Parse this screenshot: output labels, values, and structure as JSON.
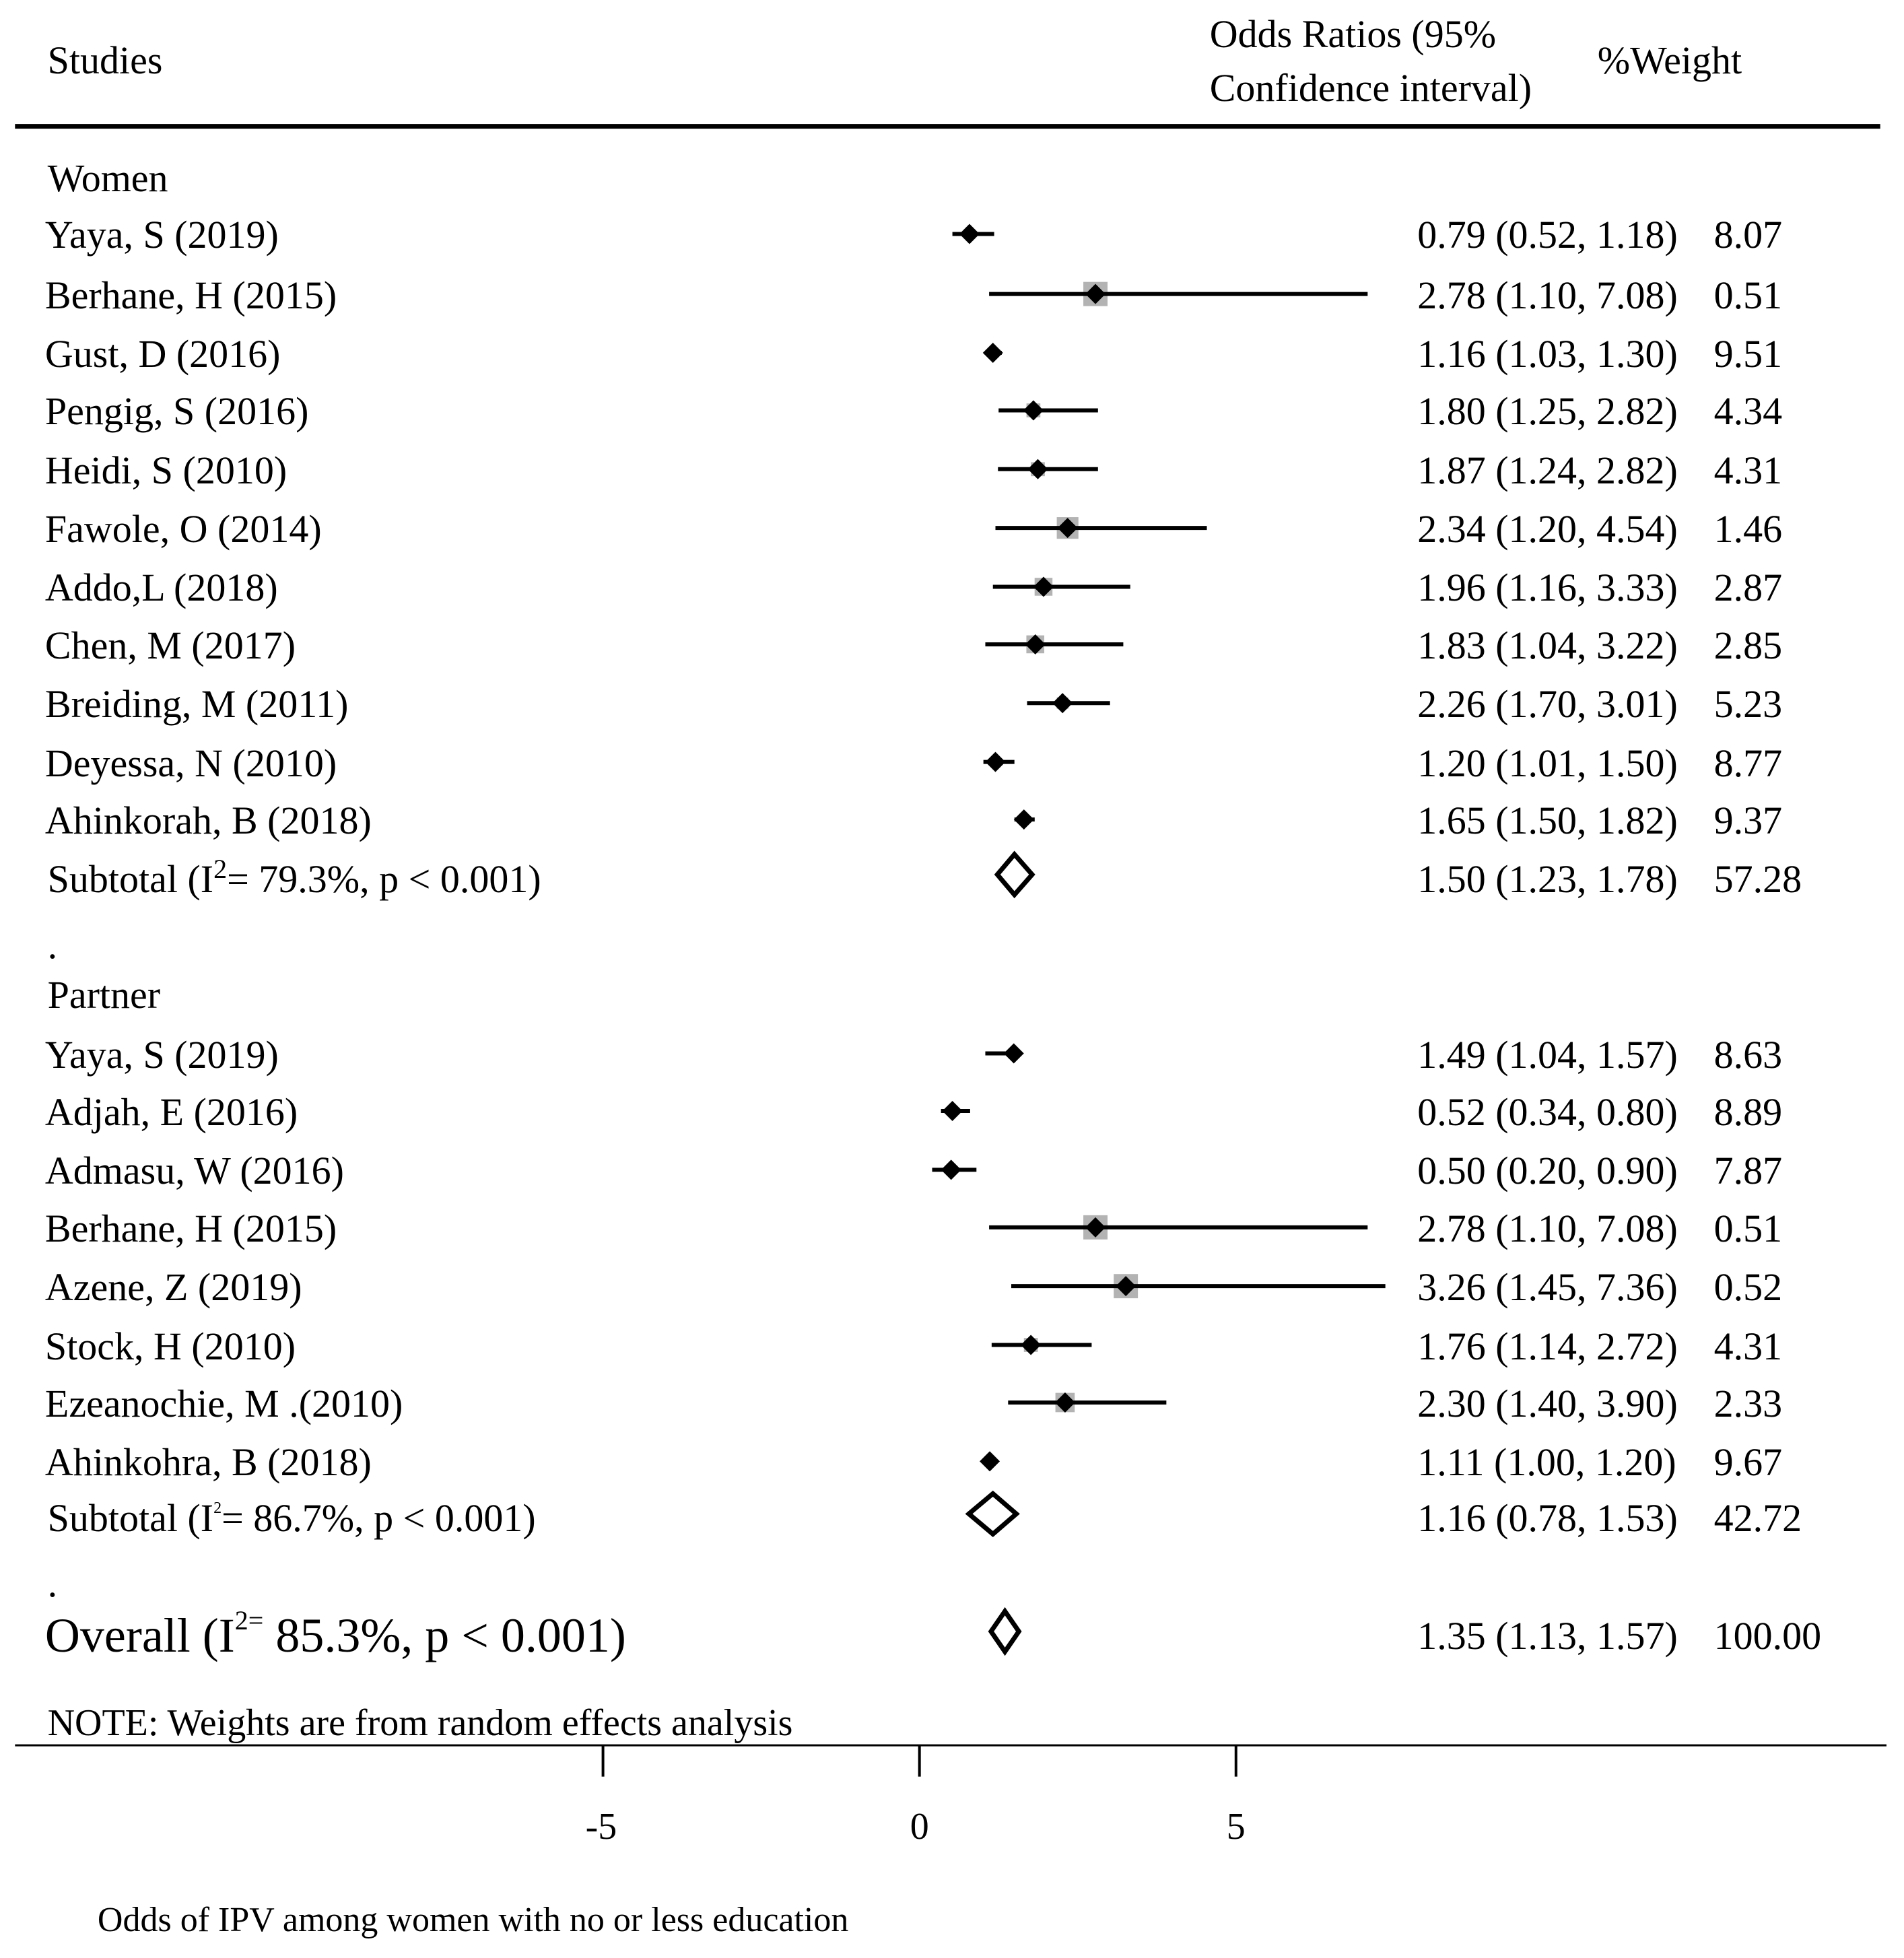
{
  "header": {
    "studies": "Studies",
    "or_line1": "Odds Ratios (95%",
    "or_line2": "Confidence interval)",
    "weight": "%Weight"
  },
  "groups": {
    "women": "Women",
    "partner": "Partner"
  },
  "subtotals": {
    "women": {
      "label": "Subtotal",
      "i2": "I",
      "sup": "2",
      "stat": "= 79.3%, p < 0.001)",
      "open": "(",
      "ci": "1.50 (1.23, 1.78)",
      "weight": "57.28"
    },
    "partner": {
      "label": "Subtotal",
      "i2": "I",
      "sup": "2",
      "stat": "= 86.7%, p < 0.001)",
      "open": "(",
      "ci": "1.16 (0.78, 1.53)",
      "weight": "42.72"
    }
  },
  "overall": {
    "label": "Overall",
    "open": "(I",
    "sup": "2=",
    "stat": " 85.3%, p < 0.001)",
    "ci": "1.35 (1.13, 1.57)",
    "weight": "100.00"
  },
  "dots": {
    "d1": ".",
    "d2": "."
  },
  "note": "NOTE: Weights are from random effects analysis",
  "x_axis_label": "Odds of IPV among women with no or less education",
  "colors": {
    "box": "#b3b3b3",
    "ink": "#000000"
  },
  "chart_data": {
    "type": "forest",
    "x_ticks": [
      -5,
      0,
      5
    ],
    "x_tick_labels": [
      "-5",
      "0",
      "5"
    ],
    "women": [
      {
        "study": "Yaya, S (2019)",
        "or": 0.79,
        "lo": 0.52,
        "hi": 1.18,
        "ci": "0.79 (0.52, 1.18)",
        "weight": "8.07"
      },
      {
        "study": "Berhane, H (2015)",
        "or": 2.78,
        "lo": 1.1,
        "hi": 7.08,
        "ci": "2.78 (1.10, 7.08)",
        "weight": "0.51"
      },
      {
        "study": "Gust, D (2016)",
        "or": 1.16,
        "lo": 1.03,
        "hi": 1.3,
        "ci": "1.16 (1.03, 1.30)",
        "weight": "9.51"
      },
      {
        "study": "Pengig, S (2016)",
        "or": 1.8,
        "lo": 1.25,
        "hi": 2.82,
        "ci": "1.80 (1.25, 2.82)",
        "weight": "4.34"
      },
      {
        "study": "Heidi, S (2010)",
        "or": 1.87,
        "lo": 1.24,
        "hi": 2.82,
        "ci": "1.87 (1.24, 2.82)",
        "weight": "4.31"
      },
      {
        "study": "Fawole, O (2014)",
        "or": 2.34,
        "lo": 1.2,
        "hi": 4.54,
        "ci": "2.34 (1.20, 4.54)",
        "weight": "1.46"
      },
      {
        "study": "Addo,L  (2018)",
        "or": 1.96,
        "lo": 1.16,
        "hi": 3.33,
        "ci": "1.96 (1.16, 3.33)",
        "weight": "2.87"
      },
      {
        "study": "Chen, M (2017)",
        "or": 1.83,
        "lo": 1.04,
        "hi": 3.22,
        "ci": "1.83 (1.04, 3.22)",
        "weight": "2.85"
      },
      {
        "study": "Breiding, M (2011)",
        "or": 2.26,
        "lo": 1.7,
        "hi": 3.01,
        "ci": "2.26 (1.70, 3.01)",
        "weight": "5.23"
      },
      {
        "study": "Deyessa, N (2010)",
        "or": 1.2,
        "lo": 1.01,
        "hi": 1.5,
        "ci": "1.20 (1.01, 1.50)",
        "weight": "8.77"
      },
      {
        "study": "Ahinkorah, B (2018)",
        "or": 1.65,
        "lo": 1.5,
        "hi": 1.82,
        "ci": "1.65 (1.50, 1.82)",
        "weight": "9.37"
      }
    ],
    "partner": [
      {
        "study": "Yaya, S (2019)",
        "or": 1.49,
        "lo": 1.04,
        "hi": 1.57,
        "ci": "1.49 (1.04, 1.57)",
        "weight": "8.63"
      },
      {
        "study": "Adjah, E (2016)",
        "or": 0.52,
        "lo": 0.34,
        "hi": 0.8,
        "ci": "0.52 (0.34, 0.80)",
        "weight": "8.89"
      },
      {
        "study": "Admasu, W (2016)",
        "or": 0.5,
        "lo": 0.2,
        "hi": 0.9,
        "ci": "0.50 (0.20, 0.90)",
        "weight": "7.87"
      },
      {
        "study": "Berhane, H (2015)",
        "or": 2.78,
        "lo": 1.1,
        "hi": 7.08,
        "ci": "2.78 (1.10, 7.08)",
        "weight": "0.51"
      },
      {
        "study": "Azene, Z (2019)",
        "or": 3.26,
        "lo": 1.45,
        "hi": 7.36,
        "ci": "3.26 (1.45, 7.36)",
        "weight": "0.52"
      },
      {
        "study": "Stock, H (2010)",
        "or": 1.76,
        "lo": 1.14,
        "hi": 2.72,
        "ci": "1.76 (1.14, 2.72)",
        "weight": "4.31"
      },
      {
        "study": "Ezeanochie, M .(2010)",
        "or": 2.3,
        "lo": 1.4,
        "hi": 3.9,
        "ci": "2.30 (1.40, 3.90)",
        "weight": "2.33"
      },
      {
        "study": "Ahinkohra, B (2018)",
        "or": 1.11,
        "lo": 1.0,
        "hi": 1.2,
        "ci": "1.11 (1.00, 1.20)",
        "weight": "9.67"
      }
    ],
    "subtotal_women": {
      "or": 1.5,
      "lo": 1.23,
      "hi": 1.78
    },
    "subtotal_partner": {
      "or": 1.16,
      "lo": 0.78,
      "hi": 1.53
    },
    "overall": {
      "or": 1.35,
      "lo": 1.13,
      "hi": 1.57
    }
  }
}
